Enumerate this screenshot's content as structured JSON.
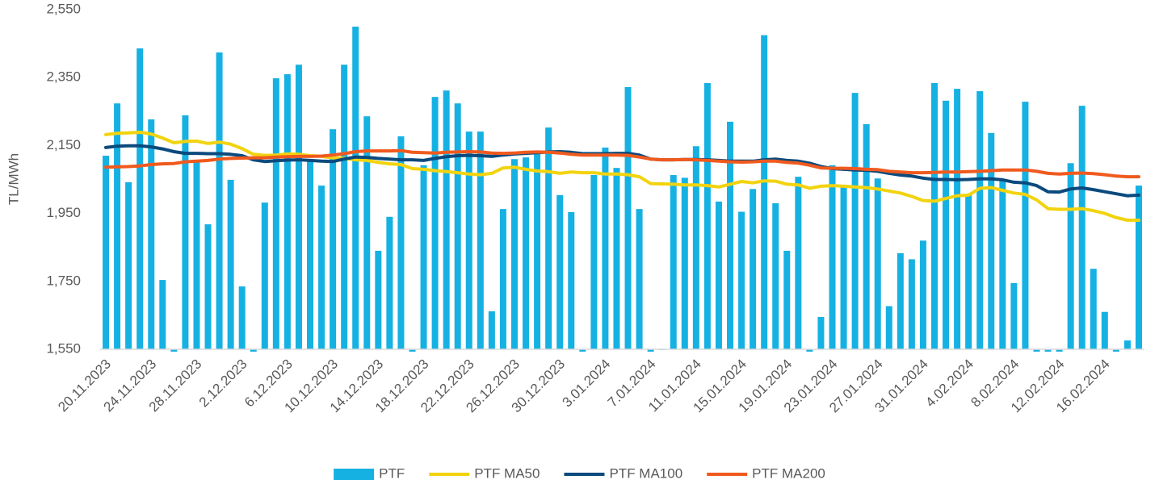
{
  "chart_data": {
    "type": "combo",
    "y_label": "TL/MWh",
    "categories": [
      "20.11.2023",
      null,
      null,
      null,
      "24.11.2023",
      null,
      null,
      null,
      "28.11.2023",
      null,
      null,
      null,
      "2.12.2023",
      null,
      null,
      null,
      "6.12.2023",
      null,
      null,
      null,
      "10.12.2023",
      null,
      null,
      null,
      "14.12.2023",
      null,
      null,
      null,
      "18.12.2023",
      null,
      null,
      null,
      "22.12.2023",
      null,
      null,
      null,
      "26.12.2023",
      null,
      null,
      null,
      "30.12.2023",
      null,
      null,
      null,
      "3.01.2024",
      null,
      null,
      null,
      "7.01.2024",
      null,
      null,
      null,
      "11.01.2024",
      null,
      null,
      null,
      "15.01.2024",
      null,
      null,
      null,
      "19.01.2024",
      null,
      null,
      null,
      "23.01.2024",
      null,
      null,
      null,
      "27.01.2024",
      null,
      null,
      null,
      "31.01.2024",
      null,
      null,
      null,
      "4.02.2024",
      null,
      null,
      null,
      "8.02.2024",
      null,
      null,
      null,
      "12.02.2024",
      null,
      null,
      null,
      "16.02.2024",
      null,
      null,
      null
    ],
    "series": [
      {
        "name": "PTF",
        "type": "bar",
        "color": "#16b1e3",
        "values": [
          2120,
          2274,
          2042,
          2436,
          2227,
          1754,
          1543,
          2239,
          2106,
          1918,
          2424,
          2049,
          1735,
          1543,
          1982,
          2348,
          2360,
          2388,
          2103,
          2032,
          2198,
          2388,
          2500,
          2236,
          1840,
          1940,
          2177,
          1543,
          2092,
          2293,
          2312,
          2274,
          2191,
          2191,
          1662,
          1963,
          2110,
          2115,
          2127,
          2203,
          2004,
          1954,
          1543,
          2063,
          2144,
          2084,
          2322,
          1963,
          1543,
          1548,
          2063,
          2055,
          2148,
          2334,
          1985,
          2220,
          1955,
          2022,
          2475,
          1980,
          1840,
          2058,
          1543,
          1645,
          2092,
          2032,
          2305,
          2213,
          2053,
          1677,
          1833,
          1815,
          1870,
          2334,
          2282,
          2317,
          2005,
          2310,
          2187,
          2050,
          1745,
          2279,
          1543,
          1543,
          1543,
          2098,
          2267,
          1787,
          1660,
          1543,
          1576,
          2032
        ]
      },
      {
        "name": "PTF MA50",
        "type": "line",
        "color": "#f2d30f",
        "values": [
          2182,
          2186,
          2187,
          2189,
          2184,
          2172,
          2158,
          2162,
          2163,
          2156,
          2160,
          2154,
          2141,
          2124,
          2121,
          2122,
          2125,
          2124,
          2120,
          2118,
          2114,
          2112,
          2108,
          2106,
          2100,
          2096,
          2094,
          2082,
          2080,
          2076,
          2073,
          2070,
          2066,
          2064,
          2068,
          2084,
          2086,
          2080,
          2075,
          2073,
          2068,
          2072,
          2070,
          2070,
          2066,
          2066,
          2064,
          2058,
          2038,
          2037,
          2036,
          2034,
          2034,
          2032,
          2028,
          2036,
          2044,
          2040,
          2046,
          2045,
          2036,
          2034,
          2024,
          2030,
          2032,
          2030,
          2028,
          2026,
          2022,
          2016,
          2010,
          2000,
          1988,
          1986,
          1994,
          2002,
          2004,
          2024,
          2026,
          2018,
          2010,
          2006,
          1990,
          1964,
          1962,
          1962,
          1964,
          1958,
          1950,
          1938,
          1930,
          1930
        ]
      },
      {
        "name": "PTF MA100",
        "type": "line",
        "color": "#0b4a7d",
        "values": [
          2144,
          2148,
          2149,
          2149,
          2146,
          2140,
          2132,
          2127,
          2127,
          2126,
          2126,
          2124,
          2120,
          2108,
          2103,
          2105,
          2107,
          2108,
          2106,
          2104,
          2103,
          2110,
          2116,
          2115,
          2112,
          2110,
          2108,
          2108,
          2106,
          2112,
          2117,
          2120,
          2121,
          2120,
          2118,
          2122,
          2125,
          2127,
          2129,
          2131,
          2132,
          2130,
          2126,
          2126,
          2126,
          2127,
          2127,
          2122,
          2110,
          2108,
          2108,
          2109,
          2109,
          2108,
          2106,
          2104,
          2104,
          2104,
          2108,
          2110,
          2106,
          2104,
          2098,
          2088,
          2082,
          2080,
          2078,
          2077,
          2074,
          2068,
          2063,
          2060,
          2054,
          2050,
          2050,
          2049,
          2050,
          2052,
          2052,
          2049,
          2042,
          2040,
          2032,
          2014,
          2013,
          2022,
          2025,
          2020,
          2014,
          2008,
          2002,
          2004
        ]
      },
      {
        "name": "PTF MA200",
        "type": "line",
        "color": "#f05a1e",
        "values": [
          2086,
          2087,
          2088,
          2090,
          2094,
          2096,
          2097,
          2102,
          2104,
          2106,
          2110,
          2112,
          2113,
          2114,
          2114,
          2116,
          2117,
          2118,
          2118,
          2119,
          2122,
          2126,
          2132,
          2134,
          2134,
          2134,
          2135,
          2130,
          2129,
          2128,
          2130,
          2131,
          2132,
          2131,
          2128,
          2127,
          2128,
          2130,
          2131,
          2130,
          2128,
          2124,
          2122,
          2122,
          2122,
          2122,
          2121,
          2116,
          2110,
          2108,
          2108,
          2109,
          2108,
          2106,
          2104,
          2102,
          2101,
          2102,
          2104,
          2104,
          2100,
          2098,
          2092,
          2084,
          2083,
          2083,
          2082,
          2080,
          2079,
          2074,
          2072,
          2070,
          2070,
          2071,
          2072,
          2072,
          2073,
          2074,
          2076,
          2078,
          2078,
          2078,
          2074,
          2068,
          2066,
          2068,
          2069,
          2067,
          2064,
          2060,
          2058,
          2058
        ]
      }
    ],
    "ylim": [
      1550,
      2550
    ],
    "yticks": [
      {
        "value": 1550,
        "label": "1,550"
      },
      {
        "value": 1750,
        "label": "1,750"
      },
      {
        "value": 1950,
        "label": "1,950"
      },
      {
        "value": 2150,
        "label": "2,150"
      },
      {
        "value": 2350,
        "label": "2,350"
      },
      {
        "value": 2550,
        "label": "2,550"
      }
    ],
    "grid": false,
    "legend": "bottom"
  }
}
